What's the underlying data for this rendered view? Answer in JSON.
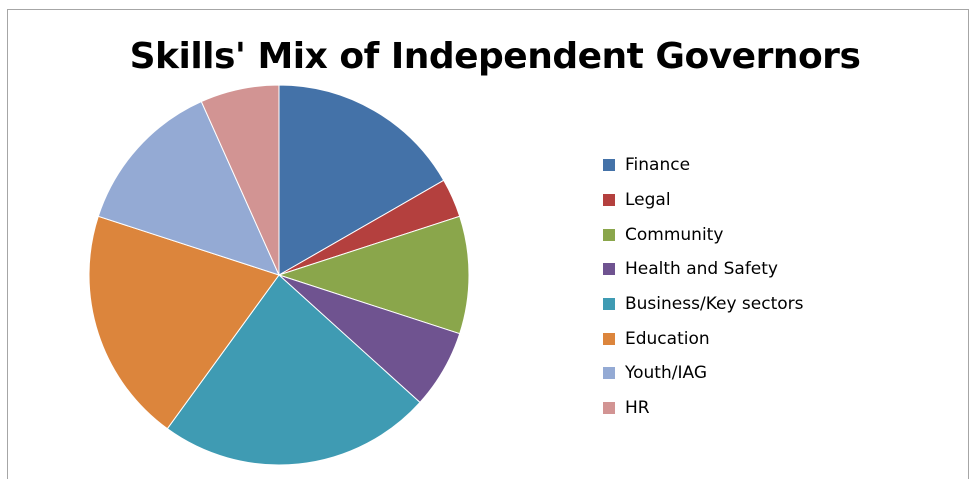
{
  "chart_data": {
    "type": "pie",
    "title": "Skills' Mix of Independent Governors",
    "legend_position": "right",
    "slices": [
      {
        "label": "Finance",
        "value": 16.7,
        "color": "#4472a8"
      },
      {
        "label": "Legal",
        "value": 3.3,
        "color": "#b4403e"
      },
      {
        "label": "Community",
        "value": 10.0,
        "color": "#8aa64b"
      },
      {
        "label": "Health and Safety",
        "value": 6.7,
        "color": "#6f5390"
      },
      {
        "label": "Business/Key sectors",
        "value": 23.3,
        "color": "#3f9bb3"
      },
      {
        "label": "Education",
        "value": 20.0,
        "color": "#dc853c"
      },
      {
        "label": "Youth/IAG",
        "value": 13.3,
        "color": "#94aad4"
      },
      {
        "label": "HR",
        "value": 6.7,
        "color": "#d29493"
      }
    ]
  }
}
